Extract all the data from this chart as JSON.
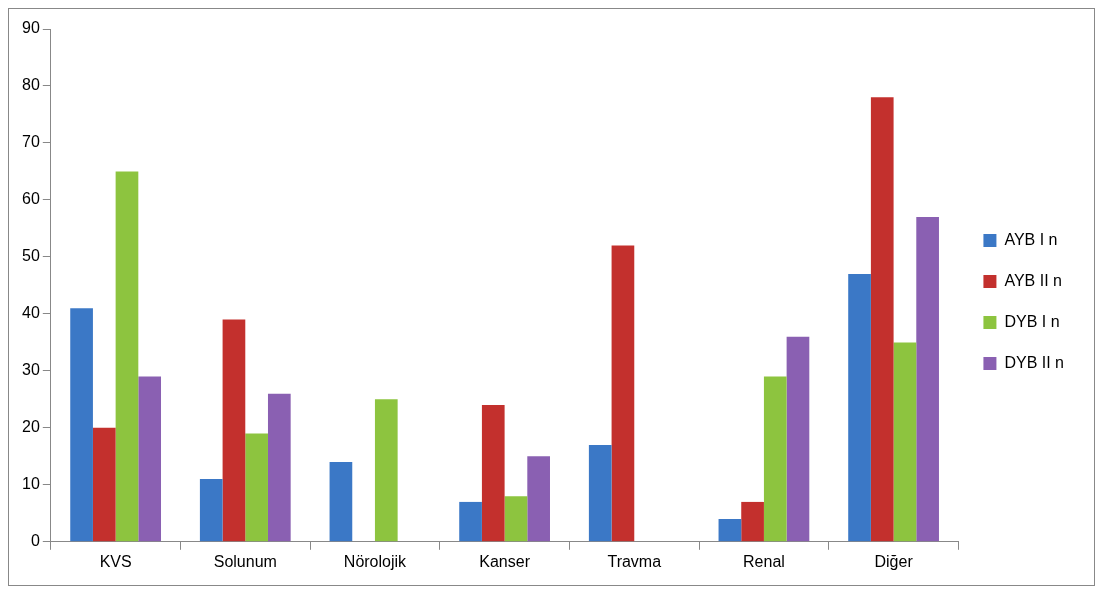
{
  "chart_data": {
    "type": "bar",
    "categories": [
      "KVS",
      "Solunum",
      "Nörolojik",
      "Kanser",
      "Travma",
      "Renal",
      "Diğer"
    ],
    "series": [
      {
        "name": "AYB I n",
        "color": "#3b78c6",
        "values": [
          41,
          11,
          14,
          7,
          17,
          4,
          47
        ]
      },
      {
        "name": "AYB II n",
        "color": "#c3302d",
        "values": [
          20,
          39,
          null,
          24,
          52,
          7,
          78
        ]
      },
      {
        "name": "DYB I n",
        "color": "#8dc43f",
        "values": [
          65,
          19,
          25,
          8,
          null,
          29,
          35
        ]
      },
      {
        "name": "DYB II n",
        "color": "#8a60b2",
        "values": [
          29,
          26,
          null,
          15,
          null,
          36,
          57
        ]
      }
    ],
    "ylim": [
      0,
      90
    ],
    "yticks": [
      0,
      10,
      20,
      30,
      40,
      50,
      60,
      70,
      80,
      90
    ],
    "grid": false,
    "legend": "right"
  }
}
